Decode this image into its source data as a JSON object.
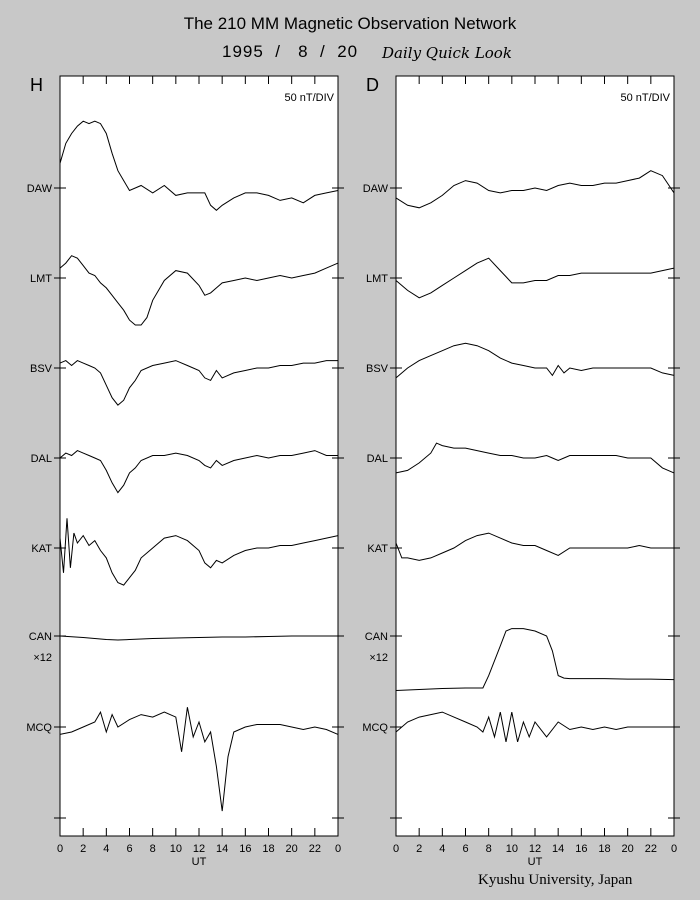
{
  "header": {
    "title": "The 210 MM Magnetic Observation Network",
    "date": "1995  /   8  /  20",
    "subtitle": "Daily Quick Look"
  },
  "footer": {
    "credit": "Kyushu University, Japan"
  },
  "chart_data": [
    {
      "type": "line",
      "panel_label": "H",
      "scale_label": "50 nT/DIV",
      "xlabel": "UT",
      "x_ticks": [
        "0",
        "2",
        "4",
        "6",
        "8",
        "10",
        "12",
        "14",
        "16",
        "18",
        "20",
        "22",
        "0"
      ],
      "xlim": [
        0,
        24
      ],
      "stations": [
        "DAW",
        "LMT",
        "BSV",
        "DAL",
        "KAT",
        "CAN",
        "MCQ"
      ],
      "scale_note": "×12",
      "scale_note_station": "CAN",
      "series": [
        {
          "name": "DAW",
          "x": [
            0,
            0.5,
            1,
            1.5,
            2,
            2.5,
            3,
            3.5,
            4,
            4.5,
            5,
            5.5,
            6,
            7,
            8,
            9,
            10,
            11,
            12,
            12.5,
            13,
            13.5,
            14,
            15,
            16,
            17,
            18,
            19,
            20,
            21,
            22,
            23,
            24
          ],
          "y": [
            -0.5,
            -0.9,
            -1.1,
            -1.25,
            -1.35,
            -1.3,
            -1.35,
            -1.3,
            -1.1,
            -0.7,
            -0.35,
            -0.15,
            0.05,
            -0.05,
            0.1,
            -0.05,
            0.15,
            0.1,
            0.1,
            0.1,
            0.35,
            0.45,
            0.35,
            0.2,
            0.1,
            0.1,
            0.15,
            0.25,
            0.2,
            0.3,
            0.15,
            0.1,
            0.05
          ]
        },
        {
          "name": "LMT",
          "x": [
            0,
            0.5,
            1,
            1.5,
            2,
            2.5,
            3,
            3.5,
            4,
            4.5,
            5,
            5.5,
            6,
            6.5,
            7,
            7.5,
            8,
            9,
            10,
            11,
            12,
            12.5,
            13,
            13.5,
            14,
            15,
            16,
            17,
            18,
            19,
            20,
            21,
            22,
            23,
            24
          ],
          "y": [
            -0.2,
            -0.3,
            -0.45,
            -0.4,
            -0.25,
            -0.1,
            -0.05,
            0.1,
            0.2,
            0.35,
            0.5,
            0.65,
            0.85,
            0.95,
            0.95,
            0.8,
            0.45,
            0.05,
            -0.15,
            -0.1,
            0.15,
            0.35,
            0.3,
            0.2,
            0.1,
            0.05,
            0.0,
            0.05,
            0.0,
            -0.05,
            0.0,
            -0.05,
            -0.1,
            -0.2,
            -0.3
          ]
        },
        {
          "name": "BSV",
          "x": [
            0,
            0.5,
            1,
            1.5,
            2,
            2.5,
            3,
            3.5,
            4,
            4.5,
            5,
            5.5,
            6,
            6.5,
            7,
            8,
            9,
            10,
            11,
            12,
            12.5,
            13,
            13.5,
            14,
            15,
            16,
            17,
            18,
            19,
            20,
            21,
            22,
            23,
            24
          ],
          "y": [
            -0.1,
            -0.15,
            -0.05,
            -0.15,
            -0.1,
            -0.05,
            0.0,
            0.1,
            0.35,
            0.6,
            0.75,
            0.65,
            0.4,
            0.25,
            0.05,
            -0.05,
            -0.1,
            -0.15,
            -0.05,
            0.05,
            0.2,
            0.25,
            0.05,
            0.2,
            0.1,
            0.05,
            0.0,
            0.0,
            -0.05,
            -0.05,
            -0.1,
            -0.1,
            -0.15,
            -0.15
          ]
        },
        {
          "name": "DAL",
          "x": [
            0,
            0.5,
            1,
            1.5,
            2,
            2.5,
            3,
            3.5,
            4,
            4.5,
            5,
            5.5,
            6,
            6.5,
            7,
            8,
            9,
            10,
            11,
            12,
            12.5,
            13,
            13.5,
            14,
            15,
            16,
            17,
            18,
            19,
            20,
            21,
            22,
            23,
            24
          ],
          "y": [
            0.0,
            -0.1,
            -0.05,
            -0.15,
            -0.1,
            -0.05,
            0.0,
            0.05,
            0.25,
            0.5,
            0.7,
            0.55,
            0.3,
            0.2,
            0.05,
            -0.05,
            -0.05,
            -0.1,
            -0.05,
            0.05,
            0.15,
            0.2,
            0.05,
            0.15,
            0.05,
            0.0,
            -0.05,
            0.0,
            -0.05,
            -0.05,
            -0.1,
            -0.15,
            -0.05,
            -0.05
          ]
        },
        {
          "name": "KAT",
          "x": [
            0,
            0.3,
            0.6,
            0.9,
            1.2,
            1.5,
            2,
            2.5,
            3,
            3.5,
            4,
            4.5,
            5,
            5.5,
            6,
            6.5,
            7,
            8,
            9,
            10,
            11,
            12,
            12.5,
            13,
            13.5,
            14,
            15,
            16,
            17,
            18,
            19,
            20,
            21,
            22,
            23,
            24
          ],
          "y": [
            -0.2,
            0.5,
            -0.6,
            0.4,
            -0.3,
            -0.1,
            -0.25,
            -0.05,
            -0.15,
            0.05,
            0.2,
            0.5,
            0.7,
            0.75,
            0.6,
            0.45,
            0.2,
            0.0,
            -0.2,
            -0.25,
            -0.15,
            0.05,
            0.3,
            0.4,
            0.25,
            0.3,
            0.15,
            0.05,
            0.0,
            0.0,
            -0.05,
            -0.05,
            -0.1,
            -0.15,
            -0.2,
            -0.25
          ]
        },
        {
          "name": "CAN",
          "x": [
            0,
            2,
            4,
            5,
            6,
            8,
            10,
            12,
            14,
            16,
            18,
            20,
            22,
            24
          ],
          "y": [
            0.0,
            0.03,
            0.07,
            0.08,
            0.07,
            0.05,
            0.04,
            0.03,
            0.02,
            0.02,
            0.01,
            0.0,
            0.0,
            0.0
          ]
        },
        {
          "name": "MCQ",
          "x": [
            0,
            1,
            2,
            3,
            3.5,
            4,
            4.5,
            5,
            6,
            7,
            8,
            9,
            10,
            10.5,
            11,
            11.5,
            12,
            12.5,
            13,
            13.5,
            14,
            14.5,
            15,
            16,
            17,
            18,
            19,
            20,
            21,
            22,
            23,
            24
          ],
          "y": [
            0.15,
            0.1,
            0.0,
            -0.1,
            -0.3,
            0.1,
            -0.25,
            0.0,
            -0.15,
            -0.25,
            -0.2,
            -0.3,
            -0.2,
            0.5,
            -0.4,
            0.2,
            -0.1,
            0.3,
            0.1,
            0.8,
            1.7,
            0.6,
            0.1,
            0.0,
            -0.05,
            -0.05,
            -0.05,
            0.0,
            0.05,
            0.0,
            0.05,
            0.15
          ]
        }
      ]
    },
    {
      "type": "line",
      "panel_label": "D",
      "scale_label": "50 nT/DIV",
      "xlabel": "UT",
      "x_ticks": [
        "0",
        "2",
        "4",
        "6",
        "8",
        "10",
        "12",
        "14",
        "16",
        "18",
        "20",
        "22",
        "0"
      ],
      "xlim": [
        0,
        24
      ],
      "stations": [
        "DAW",
        "LMT",
        "BSV",
        "DAL",
        "KAT",
        "CAN",
        "MCQ"
      ],
      "scale_note": "×12",
      "scale_note_station": "CAN",
      "series": [
        {
          "name": "DAW",
          "x": [
            0,
            1,
            2,
            3,
            4,
            5,
            6,
            7,
            8,
            9,
            10,
            11,
            12,
            13,
            14,
            15,
            16,
            17,
            18,
            19,
            20,
            21,
            22,
            23,
            24
          ],
          "y": [
            0.2,
            0.35,
            0.4,
            0.3,
            0.15,
            -0.05,
            -0.15,
            -0.1,
            0.05,
            0.1,
            0.05,
            0.05,
            0.0,
            0.05,
            -0.05,
            -0.1,
            -0.05,
            -0.05,
            -0.1,
            -0.1,
            -0.15,
            -0.2,
            -0.35,
            -0.25,
            0.1
          ]
        },
        {
          "name": "LMT",
          "x": [
            0,
            1,
            2,
            3,
            4,
            5,
            6,
            7,
            8,
            9,
            10,
            11,
            12,
            13,
            14,
            15,
            16,
            17,
            18,
            19,
            20,
            21,
            22,
            23,
            24
          ],
          "y": [
            0.05,
            0.25,
            0.4,
            0.3,
            0.15,
            0.0,
            -0.15,
            -0.3,
            -0.4,
            -0.15,
            0.1,
            0.1,
            0.05,
            0.05,
            -0.05,
            -0.05,
            -0.1,
            -0.1,
            -0.1,
            -0.1,
            -0.1,
            -0.1,
            -0.1,
            -0.15,
            -0.2
          ]
        },
        {
          "name": "BSV",
          "x": [
            0,
            1,
            2,
            3,
            4,
            5,
            6,
            7,
            8,
            9,
            10,
            11,
            12,
            13,
            13.5,
            14,
            14.5,
            15,
            16,
            17,
            18,
            19,
            20,
            21,
            22,
            23,
            24
          ],
          "y": [
            0.2,
            0.0,
            -0.15,
            -0.25,
            -0.35,
            -0.45,
            -0.5,
            -0.45,
            -0.35,
            -0.2,
            -0.1,
            -0.05,
            0.0,
            0.0,
            0.15,
            -0.05,
            0.1,
            0.0,
            0.05,
            0.0,
            0.0,
            0.0,
            0.0,
            0.0,
            0.0,
            0.1,
            0.15
          ]
        },
        {
          "name": "DAL",
          "x": [
            0,
            1,
            2,
            3,
            3.5,
            4,
            5,
            6,
            7,
            8,
            9,
            10,
            11,
            12,
            13,
            13.5,
            14,
            14.5,
            15,
            16,
            17,
            18,
            19,
            20,
            21,
            22,
            23,
            24
          ],
          "y": [
            0.3,
            0.25,
            0.1,
            -0.1,
            -0.3,
            -0.25,
            -0.2,
            -0.2,
            -0.15,
            -0.1,
            -0.05,
            -0.05,
            0.0,
            0.0,
            -0.05,
            0.0,
            0.05,
            0.0,
            -0.05,
            -0.05,
            -0.05,
            -0.05,
            -0.05,
            0.0,
            0.0,
            0.0,
            0.2,
            0.3
          ]
        },
        {
          "name": "KAT",
          "x": [
            0,
            0.5,
            1,
            2,
            3,
            4,
            5,
            6,
            7,
            8,
            9,
            10,
            11,
            12,
            13,
            14,
            15,
            16,
            17,
            18,
            19,
            20,
            21,
            22,
            23,
            24
          ],
          "y": [
            -0.1,
            0.2,
            0.2,
            0.25,
            0.2,
            0.1,
            0.0,
            -0.15,
            -0.25,
            -0.3,
            -0.2,
            -0.1,
            -0.05,
            -0.05,
            0.05,
            0.15,
            0.0,
            0.0,
            0.0,
            0.0,
            0.0,
            0.0,
            -0.05,
            0.0,
            0.0,
            0.0
          ]
        },
        {
          "name": "CAN",
          "x": [
            0,
            2,
            4,
            6,
            7.5,
            8,
            9,
            9.5,
            10,
            11,
            12,
            13,
            13.5,
            14,
            14.5,
            15,
            16,
            18,
            20,
            22,
            24
          ],
          "y": [
            1.1,
            1.08,
            1.06,
            1.05,
            1.05,
            0.8,
            0.2,
            -0.1,
            -0.15,
            -0.15,
            -0.1,
            0.0,
            0.3,
            0.8,
            0.85,
            0.86,
            0.86,
            0.86,
            0.87,
            0.87,
            0.88
          ]
        },
        {
          "name": "MCQ",
          "x": [
            0,
            1,
            2,
            3,
            4,
            5,
            6,
            7,
            7.5,
            8,
            8.5,
            9,
            9.5,
            10,
            10.5,
            11,
            11.5,
            12,
            13,
            14,
            15,
            16,
            17,
            18,
            19,
            20,
            21,
            22,
            23,
            24
          ],
          "y": [
            0.1,
            -0.1,
            -0.2,
            -0.25,
            -0.3,
            -0.2,
            -0.1,
            0.0,
            0.1,
            -0.2,
            0.2,
            -0.3,
            0.3,
            -0.3,
            0.3,
            -0.1,
            0.2,
            -0.1,
            0.2,
            -0.1,
            0.05,
            0.0,
            0.05,
            0.0,
            0.05,
            0.0,
            0.0,
            0.0,
            0.0,
            0.0
          ]
        }
      ]
    }
  ]
}
